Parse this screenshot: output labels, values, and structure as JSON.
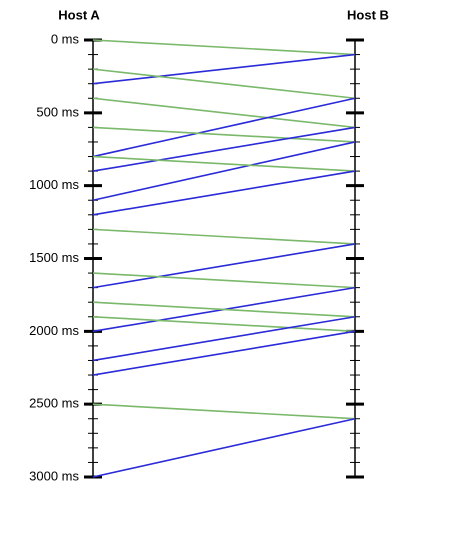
{
  "hosts": {
    "a": "Host A",
    "b": "Host B"
  },
  "axis": {
    "range": [
      0,
      3000
    ],
    "minor_tick_every": 100,
    "ticks": [
      {
        "value": 0,
        "label": "0 ms"
      },
      {
        "value": 500,
        "label": "500 ms"
      },
      {
        "value": 1000,
        "label": "1000 ms"
      },
      {
        "value": 1500,
        "label": "1500 ms"
      },
      {
        "value": 2000,
        "label": "2000 ms"
      },
      {
        "value": 2500,
        "label": "2500 ms"
      },
      {
        "value": 3000,
        "label": "3000 ms"
      }
    ]
  },
  "colors": {
    "a_to_b": "#7ab86a",
    "b_to_a": "#2a2ad8"
  },
  "messages": [
    {
      "from": "a",
      "send": 0,
      "receive": 100
    },
    {
      "from": "b",
      "send": 100,
      "receive": 300
    },
    {
      "from": "a",
      "send": 200,
      "receive": 400
    },
    {
      "from": "a",
      "send": 400,
      "receive": 600
    },
    {
      "from": "b",
      "send": 400,
      "receive": 800
    },
    {
      "from": "a",
      "send": 600,
      "receive": 700
    },
    {
      "from": "b",
      "send": 600,
      "receive": 900
    },
    {
      "from": "b",
      "send": 700,
      "receive": 1100
    },
    {
      "from": "a",
      "send": 800,
      "receive": 900
    },
    {
      "from": "b",
      "send": 900,
      "receive": 1200
    },
    {
      "from": "a",
      "send": 1300,
      "receive": 1400
    },
    {
      "from": "b",
      "send": 1400,
      "receive": 1700
    },
    {
      "from": "a",
      "send": 1600,
      "receive": 1700
    },
    {
      "from": "b",
      "send": 1700,
      "receive": 2000
    },
    {
      "from": "a",
      "send": 1800,
      "receive": 1900
    },
    {
      "from": "a",
      "send": 1900,
      "receive": 2000
    },
    {
      "from": "b",
      "send": 1900,
      "receive": 2200
    },
    {
      "from": "b",
      "send": 2000,
      "receive": 2300
    },
    {
      "from": "a",
      "send": 2500,
      "receive": 2600
    },
    {
      "from": "b",
      "send": 2600,
      "receive": 3000
    }
  ]
}
